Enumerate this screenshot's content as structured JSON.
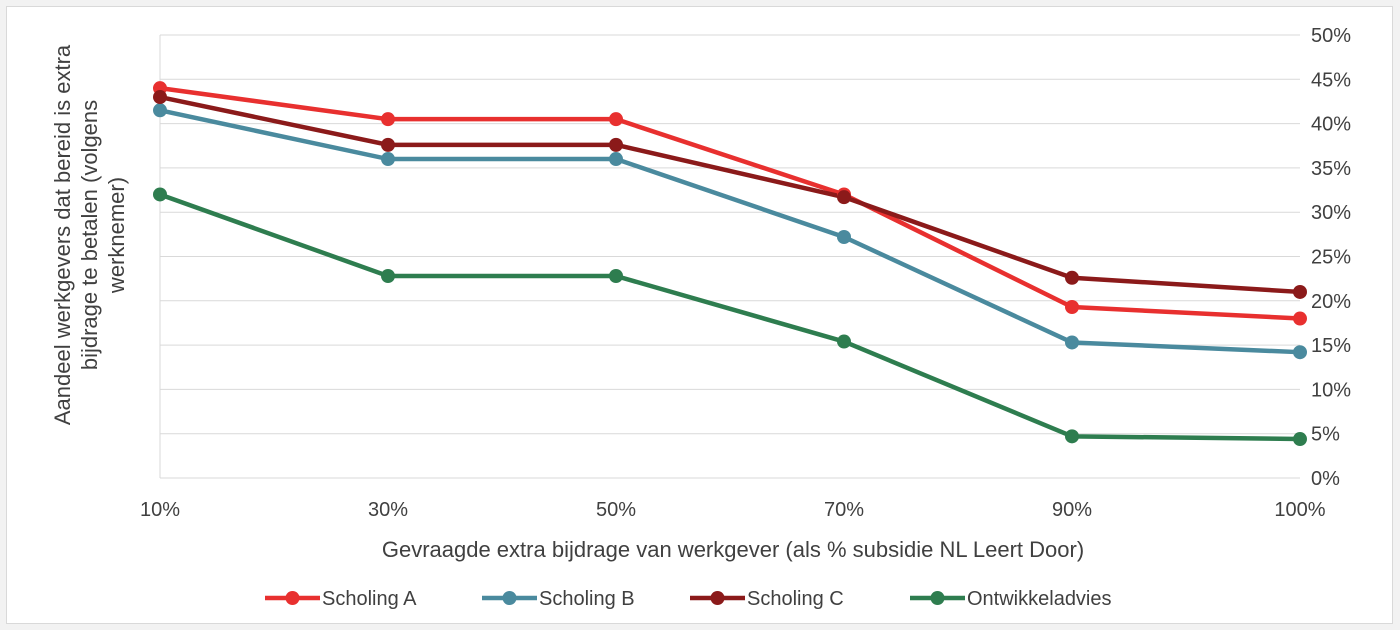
{
  "chart_data": {
    "type": "line",
    "categories": [
      "10%",
      "30%",
      "50%",
      "70%",
      "90%",
      "100%"
    ],
    "series": [
      {
        "name": "Scholing A",
        "color": "#e8302f",
        "values": [
          44.0,
          40.5,
          40.5,
          32.0,
          19.3,
          18.0
        ]
      },
      {
        "name": "Scholing B",
        "color": "#4a8a9e",
        "values": [
          41.5,
          36.0,
          36.0,
          27.2,
          15.3,
          14.2
        ]
      },
      {
        "name": "Scholing C",
        "color": "#8b1a1a",
        "values": [
          43.0,
          37.6,
          37.6,
          31.7,
          22.6,
          21.0
        ]
      },
      {
        "name": "Ontwikkeladvies",
        "color": "#2e7d4f",
        "values": [
          32.0,
          22.8,
          22.8,
          15.4,
          4.7,
          4.4
        ]
      }
    ],
    "y_ticks": [
      "0%",
      "5%",
      "10%",
      "15%",
      "20%",
      "25%",
      "30%",
      "35%",
      "40%",
      "45%",
      "50%"
    ],
    "ylim": [
      0,
      50
    ],
    "xlabel": "Gevraagde extra bijdrage van werkgever (als % subsidie NL Leert Door)",
    "ylabel_lines": [
      "Aandeel werkgevers dat  bereid is extra",
      "bijdrage te betalen (volgens",
      "werknemer)"
    ],
    "y_axis_side": "right",
    "grid": true,
    "legend_position": "bottom"
  }
}
